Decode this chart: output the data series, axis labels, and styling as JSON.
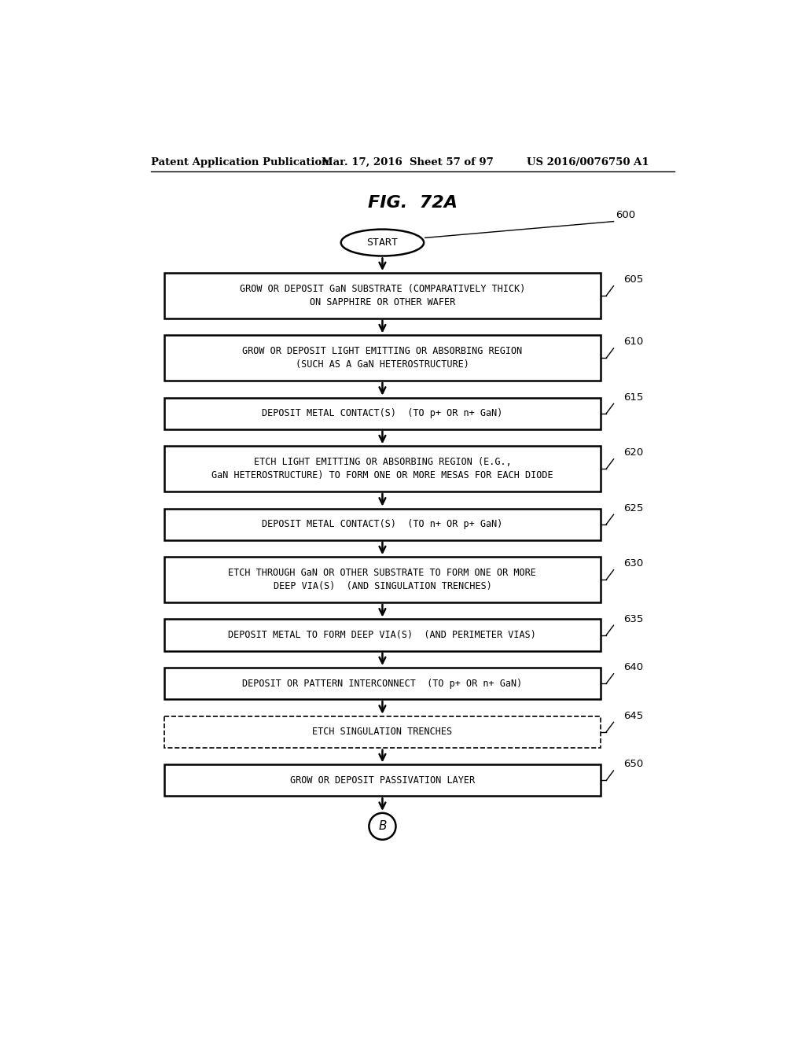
{
  "fig_title": "FIG.  72A",
  "header_left": "Patent Application Publication",
  "header_mid": "Mar. 17, 2016  Sheet 57 of 97",
  "header_right": "US 2016/0076750 A1",
  "start_label": "START",
  "start_ref": "600",
  "end_label": "B",
  "boxes": [
    {
      "id": 605,
      "text": "GROW OR DEPOSIT GaN SUBSTRATE (COMPARATIVELY THICK)\nON SAPPHIRE OR OTHER WAFER",
      "dashed": false
    },
    {
      "id": 610,
      "text": "GROW OR DEPOSIT LIGHT EMITTING OR ABSORBING REGION\n(SUCH AS A GaN HETEROSTRUCTURE)",
      "dashed": false
    },
    {
      "id": 615,
      "text": "DEPOSIT METAL CONTACT(S)  (TO p+ OR n+ GaN)",
      "dashed": false
    },
    {
      "id": 620,
      "text": "ETCH LIGHT EMITTING OR ABSORBING REGION (E.G.,\nGaN HETEROSTRUCTURE) TO FORM ONE OR MORE MESAS FOR EACH DIODE",
      "dashed": false
    },
    {
      "id": 625,
      "text": "DEPOSIT METAL CONTACT(S)  (TO n+ OR p+ GaN)",
      "dashed": false
    },
    {
      "id": 630,
      "text": "ETCH THROUGH GaN OR OTHER SUBSTRATE TO FORM ONE OR MORE\nDEEP VIA(S)  (AND SINGULATION TRENCHES)",
      "dashed": false
    },
    {
      "id": 635,
      "text": "DEPOSIT METAL TO FORM DEEP VIA(S)  (AND PERIMETER VIAS)",
      "dashed": false
    },
    {
      "id": 640,
      "text": "DEPOSIT OR PATTERN INTERCONNECT  (TO p+ OR n+ GaN)",
      "dashed": false
    },
    {
      "id": 645,
      "text": "ETCH SINGULATION TRENCHES",
      "dashed": true
    },
    {
      "id": 650,
      "text": "GROW OR DEPOSIT PASSIVATION LAYER",
      "dashed": false
    }
  ],
  "bg_color": "#ffffff",
  "box_edge_color": "#000000",
  "text_color": "#000000"
}
